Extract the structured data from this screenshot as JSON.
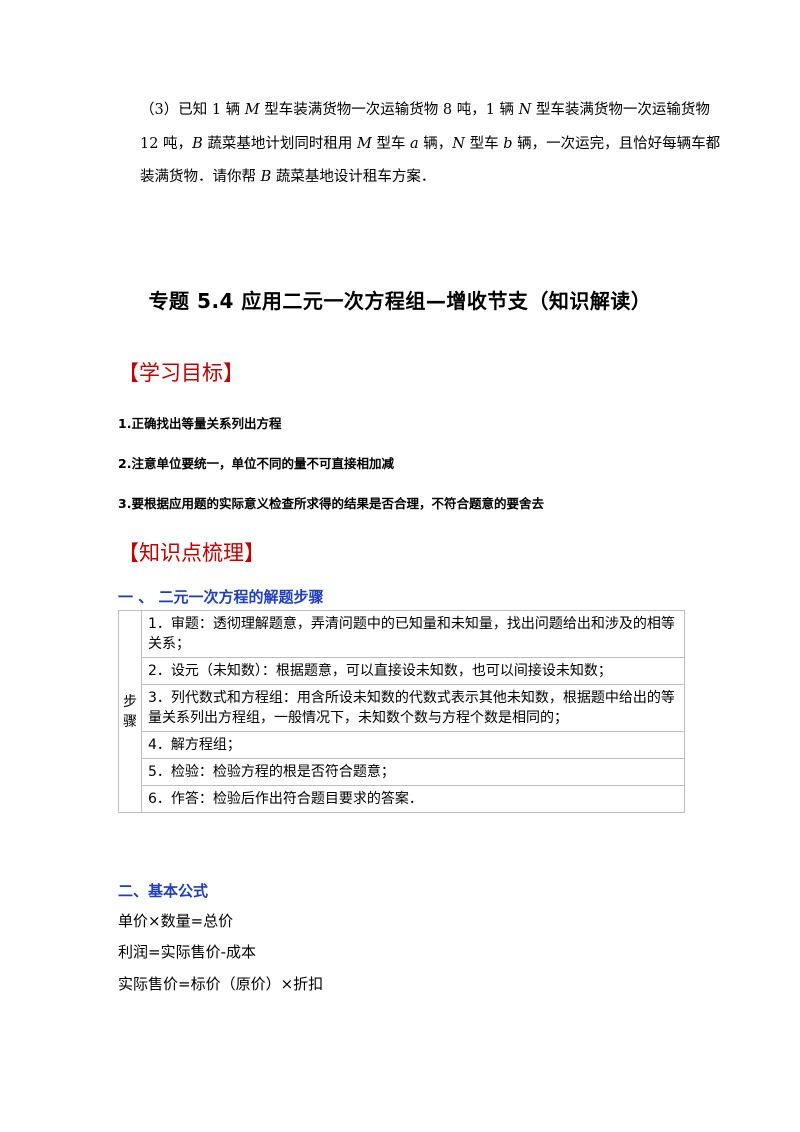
{
  "problem": {
    "line1_a": "（3）已知 1 辆 ",
    "line1_var1": "M",
    "line1_b": " 型车装满货物一次运输货物 8 吨，1 辆 ",
    "line1_var2": "N",
    "line1_c": " 型车装满货物一次运输货物",
    "line2_a": "12 吨，",
    "line2_var1": "B",
    "line2_b": " 蔬菜基地计划同时租用 ",
    "line2_var2": "M",
    "line2_c": " 型车 ",
    "line2_var3": "a",
    "line2_d": " 辆，",
    "line2_var4": "N",
    "line2_e": " 型车 ",
    "line2_var5": "b",
    "line2_f": " 辆，一次运完，且恰好每辆车都",
    "line3_a": "装满货物．请你帮 ",
    "line3_var1": "B",
    "line3_b": " 蔬菜基地设计租车方案．"
  },
  "title": "专题 5.4  应用二元一次方程组—增收节支（知识解读）",
  "section_goals": "【学习目标】",
  "goals": [
    "1.正确找出等量关系列出方程",
    "2.注意单位要统一，单位不同的量不可直接相加减",
    "3.要根据应用题的实际意义检查所求得的结果是否合理，不符合题意的要舍去"
  ],
  "section_knowledge": "【知识点梳理】",
  "subsection1": "一 、  二元一次方程的解题步骤",
  "steps_label": "步骤",
  "steps": [
    "1．审题：透彻理解题意，弄清问题中的已知量和未知量，找出问题给出和涉及的相等关系；",
    "2．设元（未知数）：根据题意，可以直接设未知数，也可以间接设未知数；",
    "3．列代数式和方程组：用含所设未知数的代数式表示其他未知数，根据题中给出的等量关系列出方程组，一般情况下，未知数个数与方程个数是相同的；",
    "4．解方程组；",
    "5．检验：检验方程的根是否符合题意；",
    "6．作答：检验后作出符合题目要求的答案．"
  ],
  "subsection2": "二、基本公式",
  "formulas": [
    "单价×数量=总价",
    "利润=实际售价-成本",
    "实际售价=标价（原价）×折扣"
  ]
}
